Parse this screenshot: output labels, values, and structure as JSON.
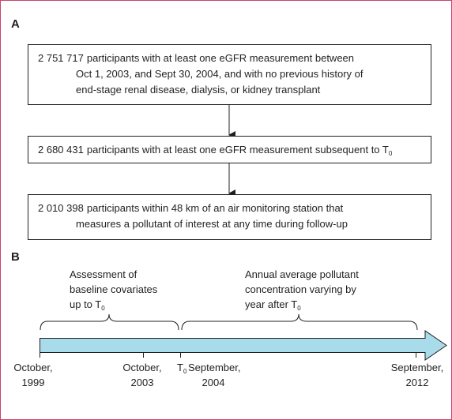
{
  "panel_a": {
    "label": "A",
    "boxes": [
      {
        "count": "2 751 717",
        "lines": [
          "participants with at least one eGFR measurement between",
          "Oct 1, 2003, and Sept 30, 2004, and with no previous history of",
          "end-stage renal disease, dialysis, or kidney transplant"
        ]
      },
      {
        "count": "2 680 431",
        "lines": [
          "participants with at least one eGFR measurement subsequent to T"
        ],
        "sub": "0"
      },
      {
        "count": "2 010 398",
        "lines": [
          "participants within 48 km of an air monitoring station that",
          "measures a pollutant of interest at any time during follow-up"
        ]
      }
    ]
  },
  "panel_b": {
    "label": "B",
    "left_note": {
      "lines": [
        "Assessment of",
        "baseline covariates",
        "up to T"
      ],
      "sub": "0"
    },
    "right_note": {
      "lines": [
        "Annual average pollutant",
        "concentration varying by",
        "year after T"
      ],
      "sub": "0"
    },
    "timeline": [
      {
        "lines": [
          "October,",
          "1999"
        ]
      },
      {
        "lines": [
          "October,",
          "2003"
        ]
      },
      {
        "text": "T",
        "sub": "0"
      },
      {
        "lines": [
          "September,",
          "2004"
        ]
      },
      {
        "lines": [
          "September,",
          "2012"
        ]
      }
    ]
  }
}
